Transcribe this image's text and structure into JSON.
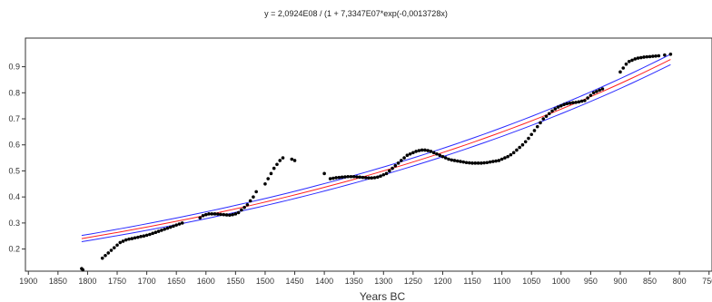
{
  "chart_data": {
    "type": "scatter",
    "title": "y = 2,0924E08 / (1 + 7,3347E07*exp(-0,0013728x)",
    "xlabel": "Years BC",
    "ylabel": "",
    "x_reversed": true,
    "xlim": [
      1905,
      745
    ],
    "ylim": [
      0.115,
      1.01
    ],
    "x_ticks": [
      1900,
      1850,
      1800,
      1750,
      1700,
      1650,
      1600,
      1550,
      1500,
      1450,
      1400,
      1350,
      1300,
      1250,
      1200,
      1150,
      1100,
      1050,
      1000,
      950,
      900,
      850,
      800,
      750
    ],
    "y_ticks": [
      0.2,
      0.3,
      0.4,
      0.5,
      0.6,
      0.7,
      0.8,
      0.9
    ],
    "y_tick_labels": [
      "0.2",
      "0.3",
      "0.4",
      "0.5",
      "0.6",
      "0.7",
      "0.8",
      "0.9"
    ],
    "grid": false,
    "colors": {
      "points": "#000000",
      "fit": "#ff2020",
      "bounds": "#2a2aff",
      "axis": "#333333"
    },
    "series": [
      {
        "kind": "points",
        "x": [
          1810,
          1808,
          1775,
          1770,
          1765,
          1760,
          1755,
          1750,
          1745,
          1740,
          1735,
          1730,
          1725,
          1720,
          1715,
          1710,
          1705,
          1700,
          1695,
          1690,
          1685,
          1680,
          1675,
          1670,
          1665,
          1660,
          1655,
          1650,
          1645,
          1640,
          1610,
          1605,
          1600,
          1595,
          1590,
          1585,
          1580,
          1575,
          1570,
          1565,
          1560,
          1555,
          1550,
          1545,
          1540,
          1535,
          1530,
          1525,
          1520,
          1515,
          1500,
          1495,
          1490,
          1485,
          1480,
          1475,
          1470,
          1455,
          1450,
          1400,
          1390,
          1385,
          1380,
          1375,
          1370,
          1365,
          1360,
          1355,
          1350,
          1345,
          1340,
          1335,
          1330,
          1325,
          1320,
          1315,
          1310,
          1305,
          1300,
          1295,
          1290,
          1285,
          1280,
          1275,
          1270,
          1265,
          1260,
          1255,
          1250,
          1245,
          1240,
          1235,
          1230,
          1225,
          1220,
          1215,
          1210,
          1205,
          1200,
          1195,
          1190,
          1185,
          1180,
          1175,
          1170,
          1165,
          1160,
          1155,
          1150,
          1145,
          1140,
          1135,
          1130,
          1125,
          1120,
          1115,
          1110,
          1105,
          1100,
          1095,
          1090,
          1085,
          1080,
          1075,
          1070,
          1065,
          1060,
          1055,
          1050,
          1045,
          1040,
          1035,
          1030,
          1025,
          1020,
          1015,
          1010,
          1005,
          1000,
          995,
          990,
          985,
          980,
          975,
          970,
          965,
          960,
          955,
          950,
          945,
          940,
          935,
          930,
          900,
          895,
          890,
          885,
          880,
          875,
          870,
          865,
          860,
          855,
          850,
          845,
          840,
          835,
          825,
          815
        ],
        "y": [
          0.125,
          0.12,
          0.165,
          0.175,
          0.185,
          0.195,
          0.205,
          0.215,
          0.225,
          0.23,
          0.235,
          0.238,
          0.24,
          0.243,
          0.245,
          0.248,
          0.25,
          0.253,
          0.256,
          0.26,
          0.264,
          0.268,
          0.272,
          0.276,
          0.28,
          0.284,
          0.288,
          0.292,
          0.296,
          0.3,
          0.32,
          0.328,
          0.332,
          0.335,
          0.335,
          0.335,
          0.334,
          0.333,
          0.332,
          0.331,
          0.33,
          0.332,
          0.335,
          0.34,
          0.35,
          0.36,
          0.37,
          0.385,
          0.4,
          0.42,
          0.45,
          0.47,
          0.49,
          0.51,
          0.525,
          0.54,
          0.55,
          0.545,
          0.54,
          0.49,
          0.47,
          0.472,
          0.474,
          0.475,
          0.476,
          0.477,
          0.478,
          0.478,
          0.478,
          0.477,
          0.476,
          0.475,
          0.474,
          0.473,
          0.473,
          0.474,
          0.476,
          0.48,
          0.485,
          0.49,
          0.5,
          0.51,
          0.52,
          0.53,
          0.54,
          0.55,
          0.56,
          0.565,
          0.57,
          0.575,
          0.578,
          0.58,
          0.58,
          0.578,
          0.575,
          0.57,
          0.565,
          0.56,
          0.555,
          0.55,
          0.545,
          0.542,
          0.54,
          0.538,
          0.536,
          0.534,
          0.532,
          0.531,
          0.53,
          0.53,
          0.53,
          0.53,
          0.531,
          0.532,
          0.534,
          0.536,
          0.538,
          0.54,
          0.545,
          0.55,
          0.555,
          0.562,
          0.57,
          0.58,
          0.59,
          0.6,
          0.612,
          0.625,
          0.64,
          0.655,
          0.67,
          0.685,
          0.7,
          0.71,
          0.72,
          0.73,
          0.738,
          0.745,
          0.75,
          0.755,
          0.758,
          0.76,
          0.762,
          0.763,
          0.765,
          0.768,
          0.77,
          0.78,
          0.79,
          0.8,
          0.805,
          0.81,
          0.815,
          0.88,
          0.895,
          0.91,
          0.92,
          0.925,
          0.93,
          0.933,
          0.935,
          0.937,
          0.938,
          0.939,
          0.94,
          0.941,
          0.942,
          0.945,
          0.948
        ]
      },
      {
        "kind": "fit",
        "x": [
          1810,
          815
        ],
        "y": [
          0.24,
          0.928
        ]
      },
      {
        "kind": "upper-bound",
        "x": [
          1810,
          815
        ],
        "y": [
          0.252,
          0.948
        ]
      },
      {
        "kind": "lower-bound",
        "x": [
          1810,
          815
        ],
        "y": [
          0.228,
          0.908
        ]
      }
    ]
  }
}
